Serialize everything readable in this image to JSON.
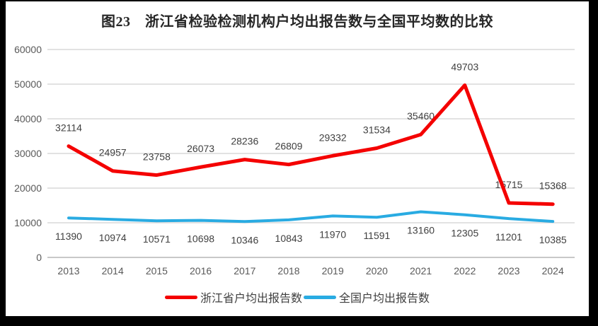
{
  "chart_data": {
    "type": "line",
    "title": "图23　浙江省检验检测机构户均出报告数与全国平均数的比较",
    "categories": [
      "2013",
      "2014",
      "2015",
      "2016",
      "2017",
      "2018",
      "2019",
      "2020",
      "2021",
      "2022",
      "2023",
      "2024"
    ],
    "series": [
      {
        "name": "浙江省户均出报告数",
        "color": "#F40000",
        "values": [
          32114,
          24957,
          23758,
          26073,
          28236,
          26809,
          29332,
          31534,
          35460,
          49703,
          15715,
          15368
        ]
      },
      {
        "name": "全国户均出报告数",
        "color": "#29ABE2",
        "values": [
          11390,
          10974,
          10571,
          10698,
          10346,
          10843,
          11970,
          11591,
          13160,
          12305,
          11201,
          10385
        ]
      }
    ],
    "xlabel": "",
    "ylabel": "",
    "ylim": [
      0,
      60000
    ],
    "ytick_step": 10000,
    "ytick_labels": [
      "0",
      "10000",
      "20000",
      "30000",
      "40000",
      "50000",
      "60000"
    ],
    "grid": "horizontal",
    "gridline_color": "#D9D9D9",
    "axis_text_color": "#595959",
    "data_label_color": "#404040",
    "legend_position": "bottom",
    "data_labels_visible": true
  }
}
